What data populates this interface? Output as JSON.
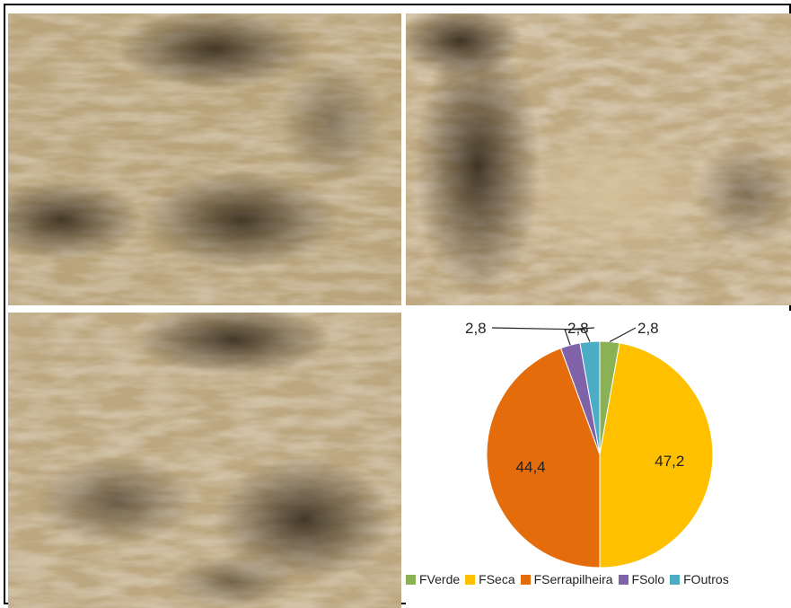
{
  "chart_data": {
    "type": "pie",
    "series": [
      {
        "name": "FVerde",
        "value": 2.8,
        "label": "2,8",
        "color": "#8ab254"
      },
      {
        "name": "FSeca",
        "value": 47.2,
        "label": "47,2",
        "color": "#ffc000"
      },
      {
        "name": "FSerrapilheira",
        "value": 44.4,
        "label": "44,4",
        "color": "#e46c0a"
      },
      {
        "name": "FSolo",
        "value": 2.8,
        "label": "2,8",
        "color": "#7f62a8"
      },
      {
        "name": "FOutros",
        "value": 2.8,
        "label": "2,8",
        "color": "#4bacc6"
      }
    ],
    "legend_position": "bottom"
  },
  "photos": [
    {
      "subject": "dry-grass-pasture-1"
    },
    {
      "subject": "dry-grass-pasture-2"
    },
    {
      "subject": "dry-grass-pasture-3"
    }
  ]
}
